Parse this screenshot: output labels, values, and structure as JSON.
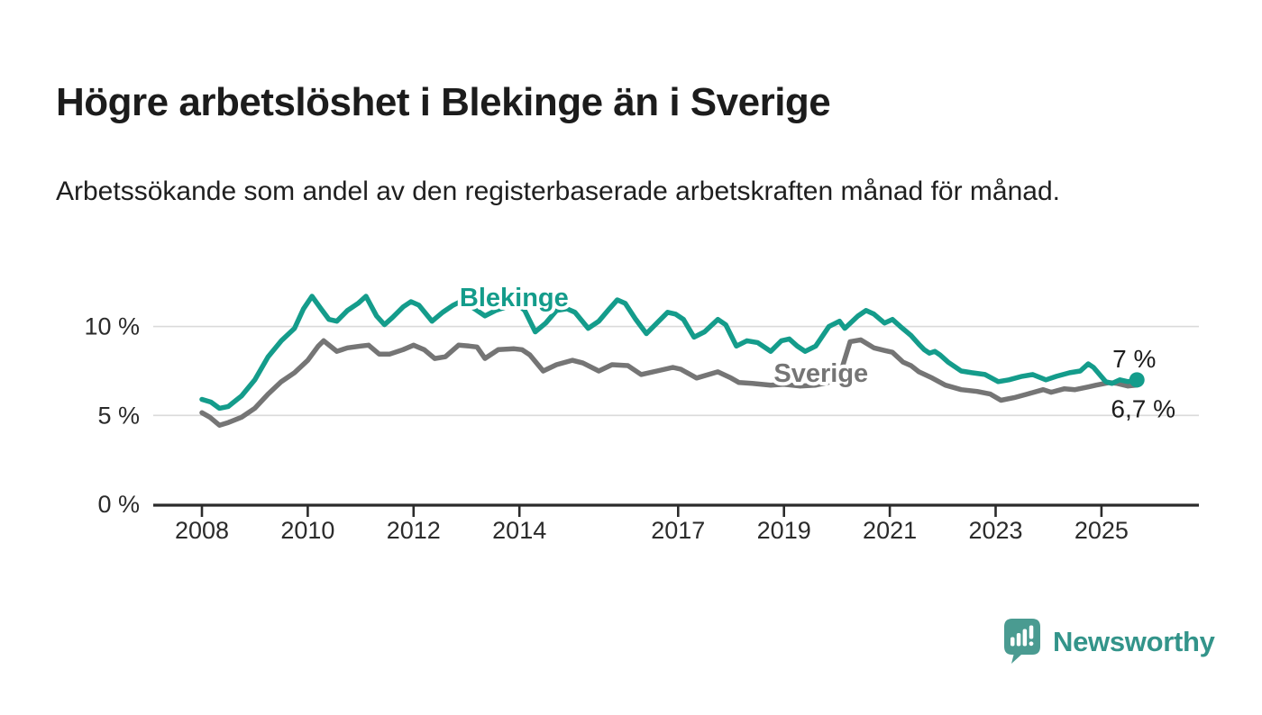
{
  "header": {
    "title": "Högre arbetslöshet i Blekinge än i Sverige",
    "subtitle": "Arbetssökande som andel av den registerbaserade arbetskraften månad för månad."
  },
  "colors": {
    "blekinge": "#149c8b",
    "sverige": "#757575",
    "grid": "#dadada",
    "axis": "#2b2b2b",
    "text": "#1c1c1c",
    "tick_text": "#2b2b2b",
    "logo_bubble": "#4a9b91",
    "logo_text": "#33948a"
  },
  "chart_data": {
    "type": "line",
    "title": "Högre arbetslöshet i Blekinge än i Sverige",
    "subtitle": "Arbetssökande som andel av den registerbaserade arbetskraften månad för månad.",
    "unit": "%",
    "legend_position": "inline-labels",
    "x_axis": {
      "ticks": [
        2008,
        2010,
        2012,
        2014,
        2017,
        2019,
        2021,
        2023,
        2025
      ],
      "range": [
        2007.1,
        2026.8
      ],
      "grid": false
    },
    "y_axis": {
      "ticks": [
        {
          "value": 0,
          "label": "0 %"
        },
        {
          "value": 5,
          "label": "5 %"
        },
        {
          "value": 10,
          "label": "10 %"
        }
      ],
      "range": [
        0,
        12.5
      ],
      "gridline_values": [
        5,
        10
      ]
    },
    "series": [
      {
        "name": "Sverige",
        "color": "#757575",
        "end_value": 6.7,
        "end_label": "6,7 %",
        "end_dot": false,
        "label_at": {
          "x": 2019.7,
          "y": 7.4
        },
        "points": [
          [
            2008.0,
            5.15
          ],
          [
            2008.15,
            4.9
          ],
          [
            2008.33,
            4.45
          ],
          [
            2008.5,
            4.6
          ],
          [
            2008.75,
            4.9
          ],
          [
            2009.0,
            5.4
          ],
          [
            2009.25,
            6.2
          ],
          [
            2009.5,
            6.9
          ],
          [
            2009.75,
            7.4
          ],
          [
            2010.0,
            8.1
          ],
          [
            2010.2,
            8.9
          ],
          [
            2010.3,
            9.2
          ],
          [
            2010.55,
            8.6
          ],
          [
            2010.75,
            8.8
          ],
          [
            2011.0,
            8.9
          ],
          [
            2011.15,
            8.95
          ],
          [
            2011.35,
            8.45
          ],
          [
            2011.55,
            8.45
          ],
          [
            2011.8,
            8.7
          ],
          [
            2012.0,
            8.95
          ],
          [
            2012.2,
            8.7
          ],
          [
            2012.4,
            8.2
          ],
          [
            2012.6,
            8.3
          ],
          [
            2012.85,
            8.95
          ],
          [
            2013.05,
            8.9
          ],
          [
            2013.2,
            8.85
          ],
          [
            2013.35,
            8.2
          ],
          [
            2013.6,
            8.7
          ],
          [
            2013.9,
            8.75
          ],
          [
            2014.05,
            8.7
          ],
          [
            2014.2,
            8.4
          ],
          [
            2014.45,
            7.5
          ],
          [
            2014.7,
            7.85
          ],
          [
            2015.0,
            8.1
          ],
          [
            2015.2,
            7.95
          ],
          [
            2015.5,
            7.5
          ],
          [
            2015.75,
            7.85
          ],
          [
            2016.05,
            7.8
          ],
          [
            2016.3,
            7.3
          ],
          [
            2016.6,
            7.5
          ],
          [
            2016.9,
            7.7
          ],
          [
            2017.05,
            7.6
          ],
          [
            2017.35,
            7.1
          ],
          [
            2017.75,
            7.45
          ],
          [
            2018.0,
            7.1
          ],
          [
            2018.15,
            6.85
          ],
          [
            2018.4,
            6.8
          ],
          [
            2018.75,
            6.7
          ],
          [
            2019.0,
            6.75
          ],
          [
            2019.3,
            6.65
          ],
          [
            2019.6,
            6.7
          ],
          [
            2019.9,
            6.9
          ],
          [
            2020.1,
            7.7
          ],
          [
            2020.25,
            9.15
          ],
          [
            2020.45,
            9.25
          ],
          [
            2020.7,
            8.8
          ],
          [
            2020.9,
            8.65
          ],
          [
            2021.05,
            8.55
          ],
          [
            2021.25,
            8.0
          ],
          [
            2021.4,
            7.8
          ],
          [
            2021.55,
            7.45
          ],
          [
            2021.8,
            7.1
          ],
          [
            2022.05,
            6.7
          ],
          [
            2022.35,
            6.45
          ],
          [
            2022.65,
            6.35
          ],
          [
            2022.9,
            6.2
          ],
          [
            2023.1,
            5.85
          ],
          [
            2023.35,
            6.0
          ],
          [
            2023.6,
            6.2
          ],
          [
            2023.9,
            6.45
          ],
          [
            2024.05,
            6.3
          ],
          [
            2024.3,
            6.5
          ],
          [
            2024.5,
            6.45
          ],
          [
            2024.75,
            6.6
          ],
          [
            2024.9,
            6.7
          ],
          [
            2025.15,
            6.85
          ],
          [
            2025.3,
            6.8
          ],
          [
            2025.5,
            6.65
          ],
          [
            2025.67,
            6.7
          ]
        ]
      },
      {
        "name": "Blekinge",
        "color": "#149c8b",
        "end_value": 7.0,
        "end_label": "7 %",
        "end_dot": true,
        "label_at": {
          "x": 2013.9,
          "y": 11.65
        },
        "points": [
          [
            2008.0,
            5.9
          ],
          [
            2008.17,
            5.75
          ],
          [
            2008.33,
            5.4
          ],
          [
            2008.5,
            5.5
          ],
          [
            2008.75,
            6.1
          ],
          [
            2009.0,
            7.0
          ],
          [
            2009.25,
            8.3
          ],
          [
            2009.5,
            9.2
          ],
          [
            2009.75,
            9.9
          ],
          [
            2009.92,
            11.0
          ],
          [
            2010.08,
            11.7
          ],
          [
            2010.25,
            11.0
          ],
          [
            2010.4,
            10.4
          ],
          [
            2010.55,
            10.3
          ],
          [
            2010.75,
            10.9
          ],
          [
            2010.95,
            11.3
          ],
          [
            2011.1,
            11.7
          ],
          [
            2011.3,
            10.6
          ],
          [
            2011.45,
            10.1
          ],
          [
            2011.6,
            10.5
          ],
          [
            2011.8,
            11.1
          ],
          [
            2011.95,
            11.4
          ],
          [
            2012.1,
            11.2
          ],
          [
            2012.35,
            10.3
          ],
          [
            2012.55,
            10.8
          ],
          [
            2012.75,
            11.2
          ],
          [
            2012.95,
            11.5
          ],
          [
            2013.1,
            11.1
          ],
          [
            2013.35,
            10.6
          ],
          [
            2013.55,
            10.9
          ],
          [
            2013.75,
            11.1
          ],
          [
            2013.95,
            11.3
          ],
          [
            2014.1,
            10.9
          ],
          [
            2014.3,
            9.7
          ],
          [
            2014.5,
            10.2
          ],
          [
            2014.7,
            10.9
          ],
          [
            2014.9,
            11.0
          ],
          [
            2015.05,
            10.8
          ],
          [
            2015.3,
            9.9
          ],
          [
            2015.5,
            10.3
          ],
          [
            2015.7,
            11.0
          ],
          [
            2015.85,
            11.5
          ],
          [
            2016.0,
            11.3
          ],
          [
            2016.2,
            10.4
          ],
          [
            2016.4,
            9.6
          ],
          [
            2016.6,
            10.2
          ],
          [
            2016.8,
            10.8
          ],
          [
            2016.95,
            10.7
          ],
          [
            2017.1,
            10.4
          ],
          [
            2017.3,
            9.4
          ],
          [
            2017.5,
            9.7
          ],
          [
            2017.75,
            10.4
          ],
          [
            2017.9,
            10.1
          ],
          [
            2018.1,
            8.9
          ],
          [
            2018.3,
            9.2
          ],
          [
            2018.5,
            9.1
          ],
          [
            2018.75,
            8.6
          ],
          [
            2018.95,
            9.2
          ],
          [
            2019.1,
            9.3
          ],
          [
            2019.25,
            8.9
          ],
          [
            2019.4,
            8.6
          ],
          [
            2019.6,
            8.9
          ],
          [
            2019.85,
            10.0
          ],
          [
            2020.05,
            10.3
          ],
          [
            2020.15,
            9.9
          ],
          [
            2020.4,
            10.6
          ],
          [
            2020.55,
            10.9
          ],
          [
            2020.7,
            10.7
          ],
          [
            2020.9,
            10.2
          ],
          [
            2021.05,
            10.4
          ],
          [
            2021.2,
            10.0
          ],
          [
            2021.4,
            9.5
          ],
          [
            2021.55,
            9.0
          ],
          [
            2021.65,
            8.7
          ],
          [
            2021.75,
            8.5
          ],
          [
            2021.85,
            8.6
          ],
          [
            2021.95,
            8.4
          ],
          [
            2022.1,
            8.0
          ],
          [
            2022.35,
            7.5
          ],
          [
            2022.55,
            7.4
          ],
          [
            2022.8,
            7.3
          ],
          [
            2023.05,
            6.9
          ],
          [
            2023.25,
            7.0
          ],
          [
            2023.5,
            7.2
          ],
          [
            2023.7,
            7.3
          ],
          [
            2023.95,
            7.0
          ],
          [
            2024.15,
            7.2
          ],
          [
            2024.4,
            7.4
          ],
          [
            2024.6,
            7.5
          ],
          [
            2024.75,
            7.9
          ],
          [
            2024.85,
            7.7
          ],
          [
            2025.08,
            6.9
          ],
          [
            2025.2,
            6.8
          ],
          [
            2025.35,
            7.0
          ],
          [
            2025.5,
            6.9
          ],
          [
            2025.67,
            7.0
          ]
        ]
      }
    ]
  },
  "footer": {
    "brand": "Newsworthy",
    "logo_icon": "newsworthy-speech-bubble-chart-icon"
  }
}
